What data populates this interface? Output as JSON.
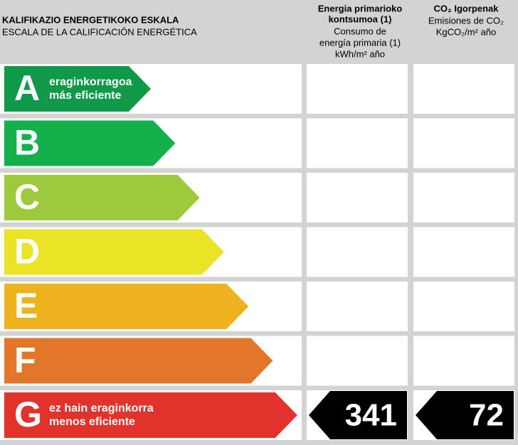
{
  "header": {
    "title": "KALIFIKAZIO ENERGETIKOKO ESKALA",
    "subtitle": "ESCALA DE LA CALIFICACIÓN ENERGÉTICA"
  },
  "columns": [
    {
      "lines": [
        "Energia primarioko",
        "kontsumoa (1)",
        "Consumo de",
        "energía primaria (1)",
        "kWh/m² año"
      ]
    },
    {
      "lines": [
        "CO₂ Igorpenak",
        "Emisiones de CO₂",
        "KgCO₂/m² año"
      ]
    }
  ],
  "ratings": [
    {
      "letter": "A",
      "color": "#11994a",
      "lines": [
        "eraginkorragoa",
        "más eficiente"
      ]
    },
    {
      "letter": "B",
      "color": "#14b04c"
    },
    {
      "letter": "C",
      "color": "#9cca3c"
    },
    {
      "letter": "D",
      "color": "#ebe326"
    },
    {
      "letter": "E",
      "color": "#efb21f"
    },
    {
      "letter": "F",
      "color": "#e2762a"
    },
    {
      "letter": "G",
      "color": "#e2322c",
      "lines": [
        "ez hain eraginkorra",
        "menos eficiente"
      ]
    }
  ],
  "values": {
    "rating_index": 6,
    "energy": 341,
    "co2": 72
  }
}
